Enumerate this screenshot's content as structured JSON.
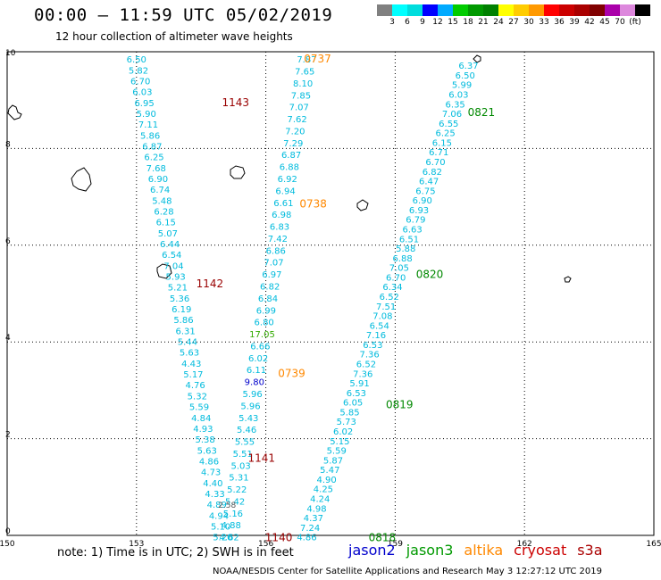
{
  "header": {
    "title": "00:00 – 11:59 UTC 05/02/2019",
    "subtitle": "12 hour collection of altimeter wave heights"
  },
  "color_scale": {
    "unit": "(ft)",
    "colors": [
      "#808080",
      "#00ffff",
      "#00dddd",
      "#0000ff",
      "#00aaff",
      "#00cc00",
      "#009900",
      "#008000",
      "#ffff00",
      "#ffcc00",
      "#ff9900",
      "#ff0000",
      "#cc0000",
      "#aa0000",
      "#800000",
      "#aa00aa",
      "#dd88dd",
      "#000000"
    ],
    "labels": [
      "3",
      "6",
      "9",
      "12",
      "15",
      "18",
      "21",
      "24",
      "27",
      "30",
      "33",
      "36",
      "39",
      "42",
      "45",
      "70"
    ]
  },
  "map": {
    "lon_range": [
      150,
      165
    ],
    "lat_range": [
      0,
      10
    ],
    "lon_ticks": [
      "150",
      "153",
      "156",
      "159",
      "162",
      "165"
    ],
    "lat_ticks": [
      "0",
      "2",
      "4",
      "6",
      "8",
      "10"
    ],
    "grid": true
  },
  "tracks": [
    {
      "name": "pass-1143-1142-1141",
      "color": "#00bbdd",
      "start": [
        153.0,
        9.85
      ],
      "end": [
        155.0,
        -0.03
      ],
      "values": [
        "6.50",
        "5.82",
        "6.70",
        "6.03",
        "6.95",
        "5.90",
        "7.11",
        "5.86",
        "6.87",
        "6.25",
        "7.68",
        "6.90",
        "6.74",
        "5.48",
        "6.28",
        "6.15",
        "5.07",
        "6.44",
        "6.54",
        "7.04",
        "5.93",
        "5.21",
        "5.36",
        "6.19",
        "5.86",
        "6.31",
        "5.44",
        "5.63",
        "4.43",
        "5.17",
        "4.76",
        "5.32",
        "5.59",
        "4.84",
        "4.93",
        "5.38",
        "5.63",
        "4.86",
        "4.73",
        "4.40",
        "4.33",
        "4.89",
        "4.94",
        "5.10",
        "5.20"
      ]
    },
    {
      "name": "pass-0737-0738-0739-1140",
      "color": "#00bbdd",
      "start": [
        156.95,
        9.85
      ],
      "end": [
        155.15,
        -0.03
      ],
      "values": [
        "7.87",
        "7.65",
        "8.10",
        "7.85",
        "7.07",
        "7.62",
        "7.20",
        "7.29",
        "6.87",
        "6.88",
        "6.92",
        "6.94",
        "6.61",
        "6.98",
        "6.83",
        "7.42",
        "6.86",
        "7.07",
        "6.97",
        "6.82",
        "6.84",
        "6.99",
        "6.80",
        "17.05",
        "6.66",
        "6.02",
        "6.11",
        "9.80",
        "5.96",
        "5.96",
        "5.43",
        "5.46",
        "5.55",
        "5.51",
        "5.03",
        "5.31",
        "5.22",
        "5.42",
        "5.16",
        "4.88",
        "4.62"
      ]
    },
    {
      "name": "pass-0821-0820-0819-0818",
      "color": "#00bbdd",
      "start": [
        160.7,
        9.72
      ],
      "end": [
        156.95,
        -0.03
      ],
      "values": [
        "6.37",
        "6.50",
        "5.99",
        "6.03",
        "6.35",
        "7.06",
        "6.55",
        "6.25",
        "6.15",
        "6.71",
        "6.70",
        "6.82",
        "6.47",
        "6.75",
        "6.90",
        "6.93",
        "6.79",
        "6.63",
        "6.51",
        "5.88",
        "6.88",
        "7.05",
        "6.70",
        "6.34",
        "6.52",
        "7.51",
        "7.08",
        "6.54",
        "7.16",
        "6.53",
        "7.36",
        "6.52",
        "7.36",
        "5.91",
        "6.53",
        "6.05",
        "5.85",
        "5.73",
        "6.02",
        "5.15",
        "5.59",
        "5.87",
        "5.47",
        "4.90",
        "4.25",
        "4.24",
        "4.98",
        "4.37",
        "7.24",
        "4.86"
      ]
    }
  ],
  "highlight_values": [
    {
      "text": "17.05",
      "color": "#33aa00"
    },
    {
      "text": "9.80",
      "color": "#0000cc"
    },
    {
      "text": "2.58",
      "color": "#555555"
    }
  ],
  "pass_times": [
    {
      "text": "1143",
      "color": "#990000"
    },
    {
      "text": "1142",
      "color": "#990000"
    },
    {
      "text": "1141",
      "color": "#990000"
    },
    {
      "text": "1140",
      "color": "#990000"
    },
    {
      "text": "0737",
      "color": "#ff8800"
    },
    {
      "text": "0738",
      "color": "#ff8800"
    },
    {
      "text": "0739",
      "color": "#ff8800"
    },
    {
      "text": "0821",
      "color": "#008800"
    },
    {
      "text": "0820",
      "color": "#008800"
    },
    {
      "text": "0819",
      "color": "#008800"
    },
    {
      "text": "0818",
      "color": "#008800"
    }
  ],
  "note": "note: 1) Time is in UTC; 2) SWH is in feet",
  "satellites": [
    {
      "name": "jason2",
      "color": "#0000cc"
    },
    {
      "name": "jason3",
      "color": "#009900"
    },
    {
      "name": "altika",
      "color": "#ff8800"
    },
    {
      "name": "cryosat",
      "color": "#cc0000"
    },
    {
      "name": "s3a",
      "color": "#aa0000"
    }
  ],
  "footer": "NOAA/NESDIS Center for Satellite Applications and Research    May  3 12:27:12 UTC 2019"
}
